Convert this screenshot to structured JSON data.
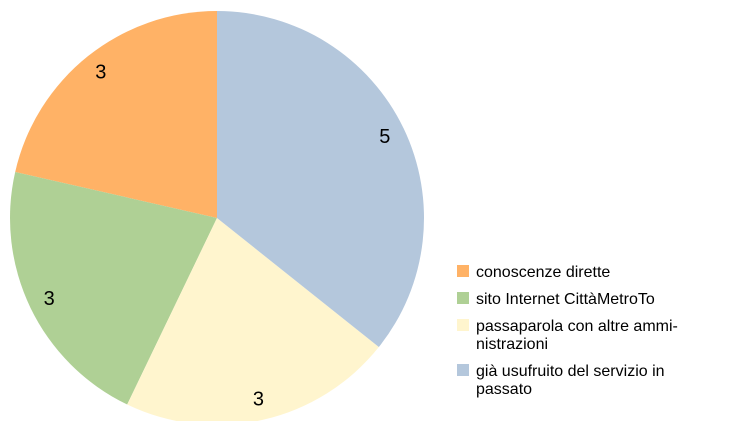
{
  "chart_data": {
    "type": "pie",
    "categories": [
      "conoscenze dirette",
      "sito Internet CittàMetroTo",
      "passaparola con altre ammi-\nnistrazioni",
      "già usufruito del servizio in\npassato"
    ],
    "values": [
      3,
      3,
      3,
      5
    ],
    "colors": [
      "#ffb266",
      "#afd095",
      "#fff5ce",
      "#b4c7dc"
    ],
    "direction": "counterclockwise",
    "legend": "right"
  }
}
